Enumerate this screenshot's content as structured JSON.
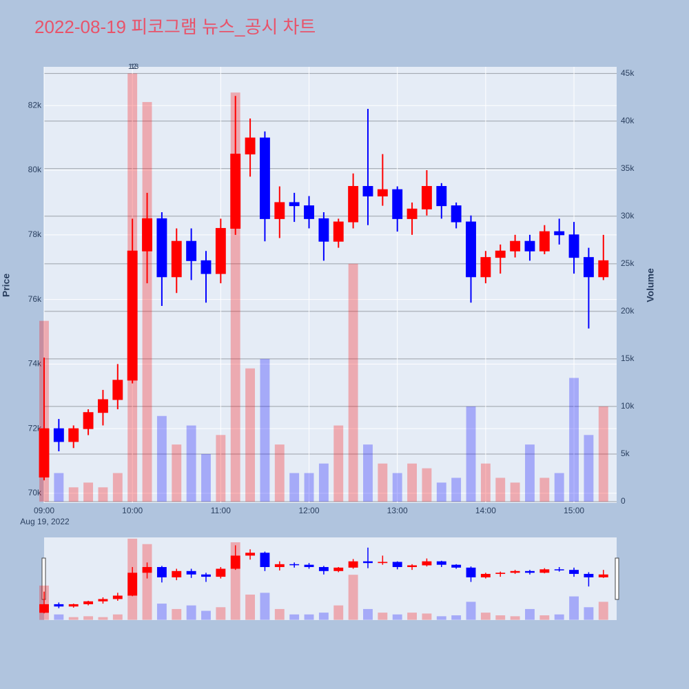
{
  "chart_data": {
    "type": "candlestick",
    "title": "2022-08-19 피코그램 뉴스_공시 차트",
    "y_label": "Price",
    "y2_label": "Volume",
    "x_date_label": "Aug 19, 2022",
    "annotations": [
      "12",
      "13"
    ],
    "increasing_color": "#ff0000",
    "decreasing_color": "#0000ff",
    "x": [
      "09:00",
      "09:10",
      "09:20",
      "09:30",
      "09:40",
      "09:50",
      "10:00",
      "10:10",
      "10:20",
      "10:30",
      "10:40",
      "10:50",
      "11:00",
      "11:10",
      "11:20",
      "11:30",
      "11:40",
      "11:50",
      "12:00",
      "12:10",
      "12:20",
      "12:30",
      "12:40",
      "12:50",
      "13:00",
      "13:10",
      "13:20",
      "13:30",
      "13:40",
      "13:50",
      "14:00",
      "14:10",
      "14:20",
      "14:30",
      "14:40",
      "14:50",
      "15:00",
      "15:10",
      "15:20"
    ],
    "open": [
      70500,
      72000,
      71600,
      72000,
      72500,
      72900,
      73500,
      77500,
      78500,
      76700,
      77800,
      77200,
      76800,
      78200,
      80500,
      81000,
      78500,
      79000,
      78900,
      78500,
      77800,
      78400,
      79500,
      79200,
      79400,
      78500,
      78800,
      79500,
      78900,
      78400,
      76700,
      77300,
      77500,
      77800,
      77500,
      78100,
      78000,
      77300,
      76700
    ],
    "high": [
      74200,
      72300,
      72100,
      72600,
      73200,
      74000,
      78500,
      79300,
      78700,
      78200,
      78200,
      77500,
      78500,
      82300,
      81600,
      81200,
      79500,
      79300,
      79200,
      78700,
      78500,
      79900,
      81900,
      80500,
      79500,
      79000,
      80000,
      79600,
      79000,
      78600,
      77500,
      77700,
      78000,
      78000,
      78300,
      78500,
      78400,
      77600,
      78000
    ],
    "low": [
      70400,
      71300,
      71400,
      71800,
      72100,
      72600,
      73400,
      76500,
      75800,
      76200,
      76600,
      75900,
      76500,
      78000,
      79800,
      77800,
      77900,
      78400,
      78200,
      77200,
      77600,
      78200,
      78300,
      78900,
      78100,
      78000,
      78600,
      78500,
      78200,
      75900,
      76500,
      76800,
      77300,
      77200,
      77400,
      77700,
      76800,
      75100,
      76600
    ],
    "close": [
      72000,
      71600,
      72000,
      72500,
      72900,
      73500,
      77500,
      78500,
      76700,
      77800,
      77200,
      76800,
      78200,
      80500,
      81000,
      78500,
      79000,
      78900,
      78500,
      77800,
      78400,
      79500,
      79200,
      79400,
      78500,
      78800,
      79500,
      78900,
      78400,
      76700,
      77300,
      77500,
      77800,
      77500,
      78100,
      78000,
      77300,
      76700,
      77200
    ],
    "volume": [
      19000,
      3000,
      1500,
      2000,
      1500,
      3000,
      45000,
      42000,
      9000,
      6000,
      8000,
      5000,
      7000,
      43000,
      14000,
      15000,
      6000,
      3000,
      3000,
      4000,
      8000,
      25000,
      6000,
      4000,
      3000,
      4000,
      3500,
      2000,
      2500,
      10000,
      4000,
      2500,
      2000,
      6000,
      2500,
      3000,
      13000,
      7000,
      10000
    ],
    "xlim": [
      "09:00",
      "15:29"
    ],
    "xticks": [
      "09:00",
      "10:00",
      "11:00",
      "12:00",
      "13:00",
      "14:00",
      "15:00"
    ],
    "ylim": [
      69700,
      83200
    ],
    "yticks": [
      {
        "value": 70000,
        "label": "70k"
      },
      {
        "value": 72000,
        "label": "72k"
      },
      {
        "value": 74000,
        "label": "74k"
      },
      {
        "value": 76000,
        "label": "76k"
      },
      {
        "value": 78000,
        "label": "78k"
      },
      {
        "value": 80000,
        "label": "80k"
      },
      {
        "value": 82000,
        "label": "82k"
      }
    ],
    "y2lim": [
      -145,
      45700
    ],
    "y2ticks": [
      0,
      {
        "value": 5000,
        "label": "5k"
      },
      {
        "value": 10000,
        "label": "10k"
      },
      {
        "value": 15000,
        "label": "15k"
      },
      {
        "value": 20000,
        "label": "20k"
      },
      {
        "value": 25000,
        "label": "25k"
      },
      {
        "value": 30000,
        "label": "30k"
      },
      {
        "value": 35000,
        "label": "35k"
      },
      {
        "value": 40000,
        "label": "40k"
      },
      {
        "value": 45000,
        "label": "45k"
      }
    ],
    "grid": true,
    "range_slider": true
  }
}
